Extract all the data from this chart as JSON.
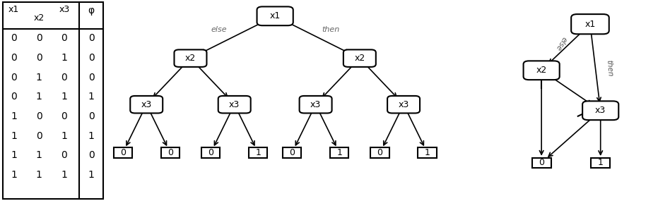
{
  "table": {
    "rows": [
      [
        0,
        0,
        0,
        0
      ],
      [
        0,
        0,
        1,
        0
      ],
      [
        0,
        1,
        0,
        0
      ],
      [
        0,
        1,
        1,
        1
      ],
      [
        1,
        0,
        0,
        0
      ],
      [
        1,
        0,
        1,
        1
      ],
      [
        1,
        1,
        0,
        0
      ],
      [
        1,
        1,
        1,
        1
      ]
    ]
  },
  "bg_color": "#ffffff",
  "node_color": "#ffffff",
  "node_edge_color": "#000000",
  "arrow_color": "#000000",
  "text_color": "#000000",
  "font_size": 9,
  "label_font_size": 8
}
